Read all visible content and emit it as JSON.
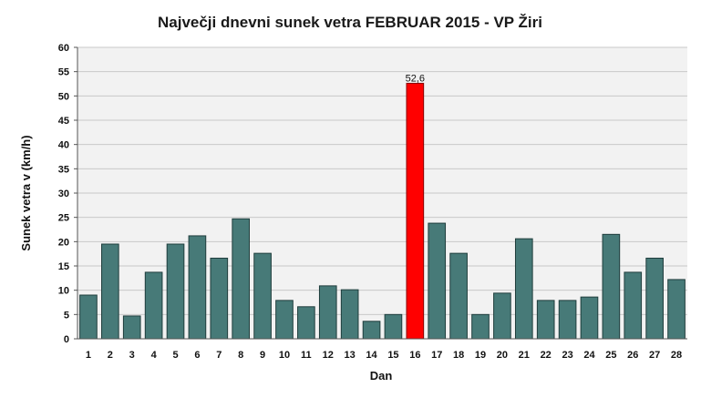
{
  "chart_data": {
    "type": "bar",
    "title": "Največji dnevni sunek vetra FEBRUAR 2015 - VP Žiri",
    "xlabel": "Dan",
    "ylabel": "Sunek vetra v (km/h)",
    "ylim": [
      0,
      60
    ],
    "ytick_step": 5,
    "grid": true,
    "categories": [
      "1",
      "2",
      "3",
      "4",
      "5",
      "6",
      "7",
      "8",
      "9",
      "10",
      "11",
      "12",
      "13",
      "14",
      "15",
      "16",
      "17",
      "18",
      "19",
      "20",
      "21",
      "22",
      "23",
      "24",
      "25",
      "26",
      "27",
      "28"
    ],
    "values": [
      9.0,
      19.5,
      4.7,
      13.7,
      19.5,
      21.2,
      16.6,
      24.7,
      17.6,
      7.9,
      6.6,
      10.9,
      10.1,
      3.6,
      5.0,
      52.6,
      23.8,
      17.6,
      5.0,
      9.4,
      20.6,
      7.9,
      7.9,
      8.6,
      21.5,
      13.7,
      16.6,
      12.2
    ],
    "highlight_index": 15,
    "data_labels": [
      {
        "index": 15,
        "text": "52,6"
      }
    ],
    "colors": {
      "bar": "#477a78",
      "bar_stroke": "#1f3d3c",
      "highlight": "#ff0000",
      "highlight_stroke": "#8a0000",
      "plot_bg": "#f2f2f2",
      "grid": "#c8c8c8",
      "axis": "#555555"
    }
  }
}
